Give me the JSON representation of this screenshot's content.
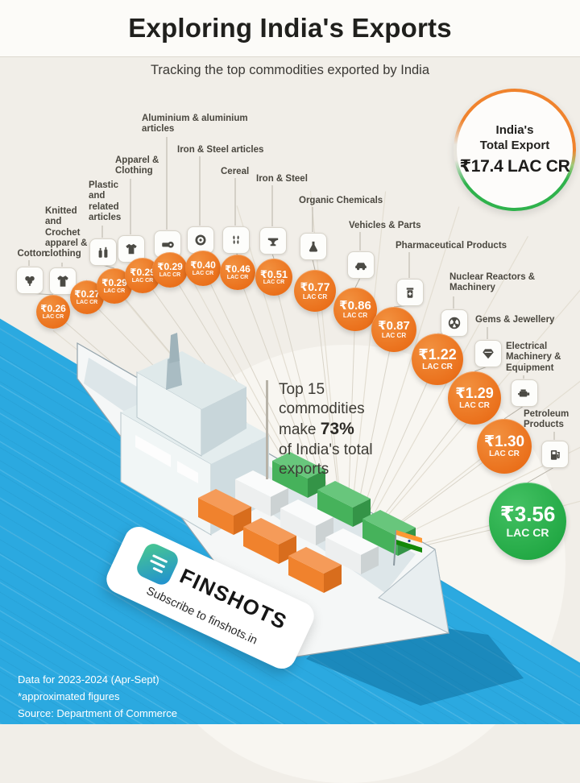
{
  "header": {
    "title": "Exploring India's Exports",
    "subtitle": "Tracking the top commodities exported by India"
  },
  "badge": {
    "line1": "India's",
    "line2": "Total Export",
    "value": "₹17.4 LAC CR"
  },
  "center_note": {
    "l1": "Top 15",
    "l2": "commodities",
    "l3_prefix": "make ",
    "l3_pct": "73%",
    "l4": "of India's total",
    "l5": "exports"
  },
  "commodities": [
    {
      "label": "Cotton",
      "icon": "cotton-icon",
      "value_display": "₹0.26",
      "unit": "LAC CR",
      "value": 0.26,
      "color": "orange"
    },
    {
      "label": "Knitted and Crochet apparel & clothing",
      "icon": "knitted-apparel-icon",
      "value_display": "₹0.27",
      "unit": "LAC CR",
      "value": 0.27,
      "color": "orange"
    },
    {
      "label": "Plastic and related articles",
      "icon": "plastic-icon",
      "value_display": "₹0.29",
      "unit": "LAC CR",
      "value": 0.29,
      "color": "orange"
    },
    {
      "label": "Apparel & Clothing",
      "icon": "apparel-icon",
      "value_display": "₹0.29",
      "unit": "LAC CR",
      "value": 0.29,
      "color": "orange"
    },
    {
      "label": "Aluminium & aluminium articles",
      "icon": "aluminium-icon",
      "value_display": "₹0.29",
      "unit": "LAC CR",
      "value": 0.29,
      "color": "orange"
    },
    {
      "label": "Iron & Steel articles",
      "icon": "iron-steel-articles-icon",
      "value_display": "₹0.40",
      "unit": "LAC CR",
      "value": 0.4,
      "color": "orange"
    },
    {
      "label": "Cereal",
      "icon": "cereal-icon",
      "value_display": "₹0.46",
      "unit": "LAC CR",
      "value": 0.46,
      "color": "orange"
    },
    {
      "label": "Iron & Steel",
      "icon": "iron-steel-icon",
      "value_display": "₹0.51",
      "unit": "LAC CR",
      "value": 0.51,
      "color": "orange"
    },
    {
      "label": "Organic Chemicals",
      "icon": "organic-chemicals-icon",
      "value_display": "₹0.77",
      "unit": "LAC CR",
      "value": 0.77,
      "color": "orange"
    },
    {
      "label": "Vehicles & Parts",
      "icon": "vehicles-icon",
      "value_display": "₹0.86",
      "unit": "LAC CR",
      "value": 0.86,
      "color": "orange"
    },
    {
      "label": "Pharmaceutical Products",
      "icon": "pharmaceutical-icon",
      "value_display": "₹0.87",
      "unit": "LAC CR",
      "value": 0.87,
      "color": "orange"
    },
    {
      "label": "Nuclear Reactors & Machinery",
      "icon": "nuclear-reactors-icon",
      "value_display": "₹1.22",
      "unit": "LAC CR",
      "value": 1.22,
      "color": "orange"
    },
    {
      "label": "Gems & Jewellery",
      "icon": "gems-jewellery-icon",
      "value_display": "₹1.29",
      "unit": "LAC CR",
      "value": 1.29,
      "color": "orange"
    },
    {
      "label": "Electrical Machinery & Equipment",
      "icon": "electrical-machinery-icon",
      "value_display": "₹1.30",
      "unit": "LAC CR",
      "value": 1.3,
      "color": "orange"
    },
    {
      "label": "Petroleum Products",
      "icon": "petroleum-icon",
      "value_display": "₹3.56",
      "unit": "LAC CR",
      "value": 3.56,
      "color": "green"
    }
  ],
  "logo": {
    "brand": "FINSHOTS",
    "tagline": "Subscribe to finshots.in"
  },
  "footer": {
    "line1": "Data for 2023-2024 (Apr-Sept)",
    "line2": "*approximated figures",
    "line3": "Source: Department of Commerce"
  },
  "colors": {
    "accent_orange": "#EE7D26",
    "accent_green": "#2FB44F",
    "water_blue": "#2BA9E0",
    "background": "#F1EEE8"
  },
  "chart_data": {
    "type": "bar",
    "title": "Exploring India's Exports",
    "subtitle": "Tracking the top commodities exported by India",
    "unit": "₹ Lac Cr",
    "categories": [
      "Cotton",
      "Knitted and Crochet apparel & clothing",
      "Plastic and related articles",
      "Apparel & Clothing",
      "Aluminium & aluminium articles",
      "Iron & Steel articles",
      "Cereal",
      "Iron & Steel",
      "Organic Chemicals",
      "Vehicles & Parts",
      "Pharmaceutical Products",
      "Nuclear Reactors & Machinery",
      "Gems & Jewellery",
      "Electrical Machinery & Equipment",
      "Petroleum Products"
    ],
    "values": [
      0.26,
      0.27,
      0.29,
      0.29,
      0.29,
      0.4,
      0.46,
      0.51,
      0.77,
      0.86,
      0.87,
      1.22,
      1.29,
      1.3,
      3.56
    ],
    "total_exports_lac_cr": 17.4,
    "top15_share_pct": 73,
    "period": "2023-2024 (Apr-Sept)",
    "source": "Department of Commerce",
    "note": "*approximated figures"
  }
}
